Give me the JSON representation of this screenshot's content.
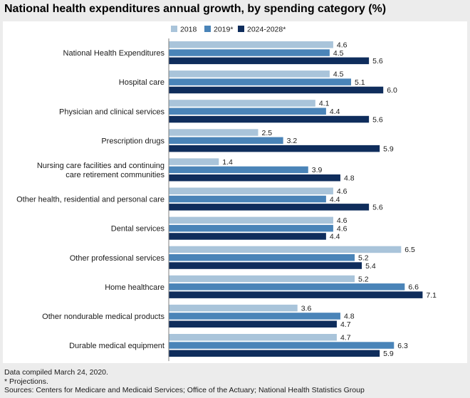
{
  "header": {
    "title": "National health expenditures annual growth, by spending category (%)"
  },
  "colors": {
    "s2018": "#a9c4da",
    "s2019": "#4a84b8",
    "s2024": "#0f2d5c",
    "axis": "#7f7f7f"
  },
  "chart_data": {
    "type": "bar",
    "orientation": "horizontal",
    "title": "National health expenditures annual growth, by spending category (%)",
    "xlabel": "",
    "ylabel": "",
    "xlim": [
      0,
      7.5
    ],
    "grid": false,
    "legend_position": "top",
    "categories": [
      [
        "National Health Expenditures"
      ],
      [
        "Hospital care"
      ],
      [
        "Physician and clinical services"
      ],
      [
        "Prescription drugs"
      ],
      [
        "Nursing care facilities and continuing",
        "care retirement communities"
      ],
      [
        "Other health, residential and personal care"
      ],
      [
        "Dental services"
      ],
      [
        "Other professional services"
      ],
      [
        "Home healthcare"
      ],
      [
        "Other nondurable medical products"
      ],
      [
        "Durable medical equipment"
      ]
    ],
    "series": [
      {
        "name": "2018",
        "color": "#a9c4da",
        "values": [
          4.6,
          4.5,
          4.1,
          2.5,
          1.4,
          4.6,
          4.6,
          6.5,
          5.2,
          3.6,
          4.7
        ]
      },
      {
        "name": "2019*",
        "color": "#4a84b8",
        "values": [
          4.5,
          5.1,
          4.4,
          3.2,
          3.9,
          4.4,
          4.6,
          5.2,
          6.6,
          4.8,
          6.3
        ]
      },
      {
        "name": "2024-2028*",
        "color": "#0f2d5c",
        "values": [
          5.6,
          6.0,
          5.6,
          5.9,
          4.8,
          5.6,
          4.4,
          5.4,
          7.1,
          4.7,
          5.9
        ]
      }
    ]
  },
  "footer": {
    "line1": "Data compiled March 24, 2020.",
    "line2": "* Projections.",
    "line3": "Sources: Centers for Medicare and Medicaid Services; Office of the Actuary; National Health Statistics Group"
  }
}
